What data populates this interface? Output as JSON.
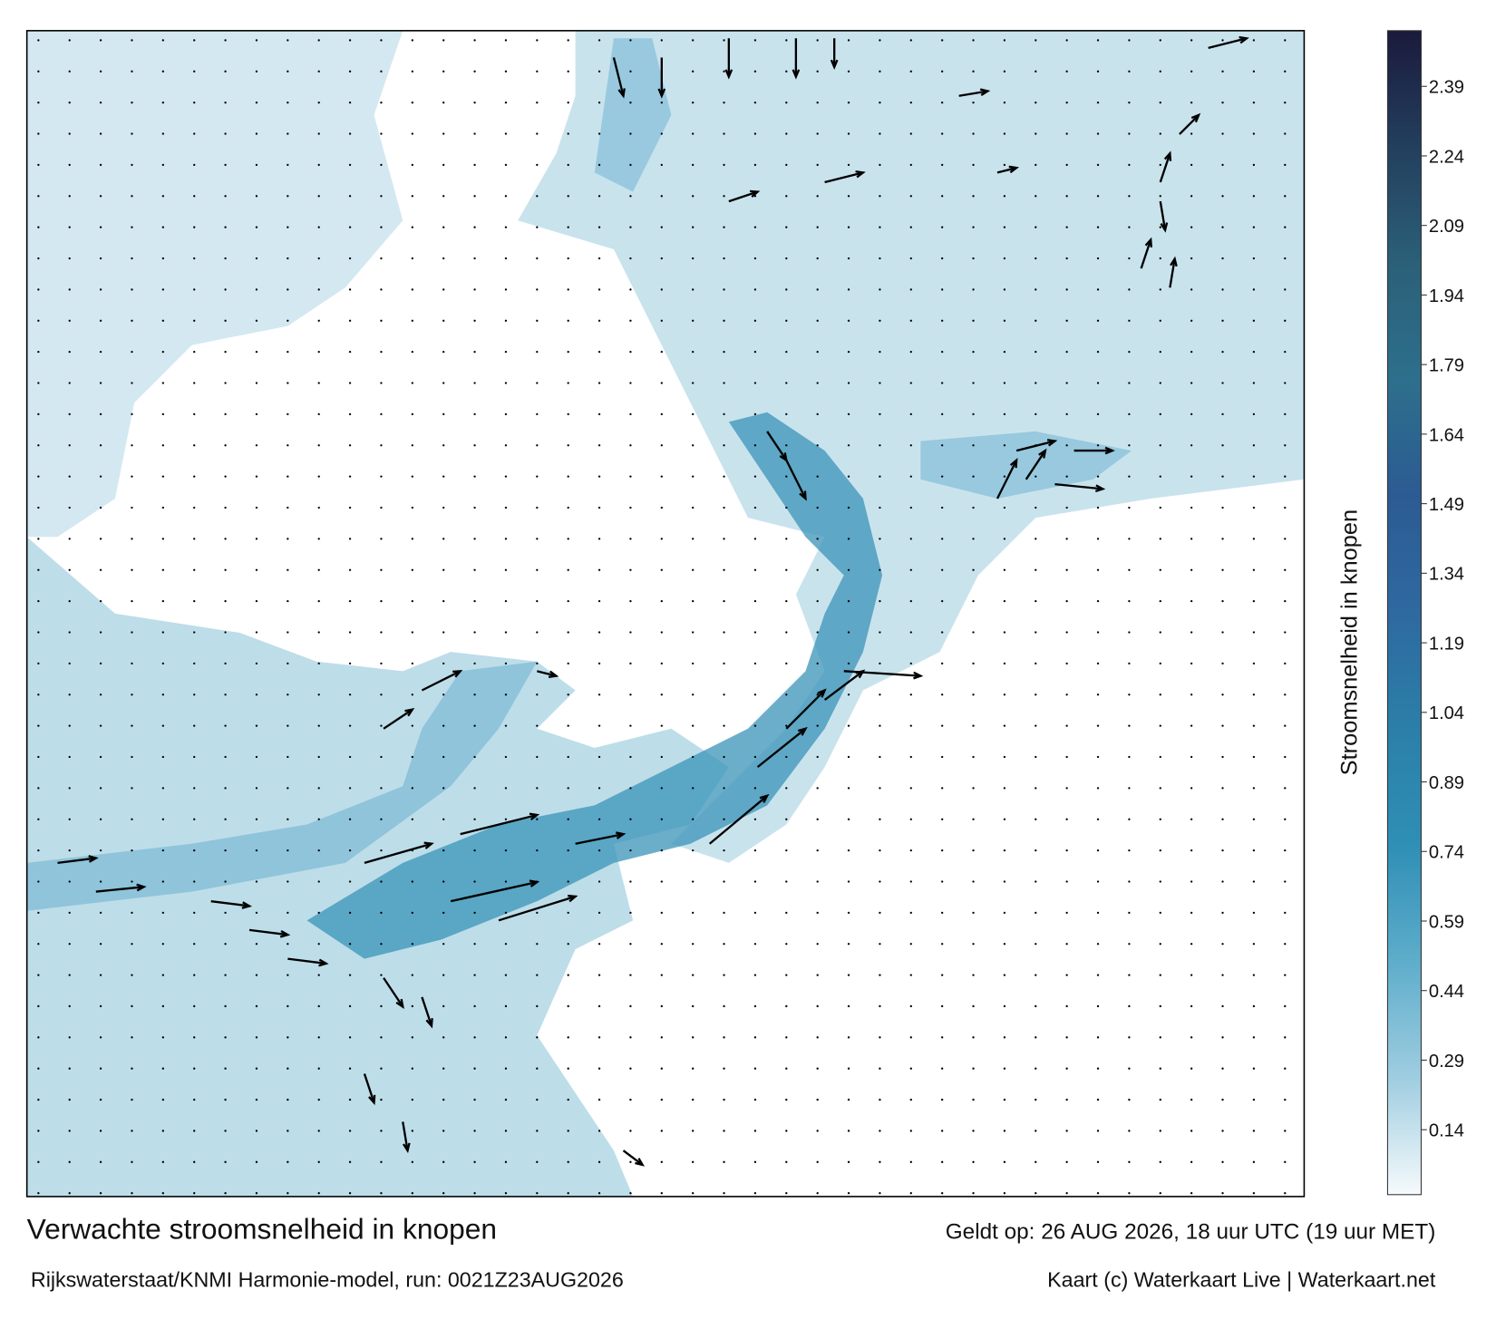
{
  "title": "Verwachte stroomsnelheid in knopen",
  "subtitle": "Rijkswaterstaat/KNMI Harmonie-model, run: 0021Z23AUG2026",
  "valid_time": "Geldt op: 26 AUG 2026, 18 uur UTC (19 uur MET)",
  "credit": "Kaart (c) Waterkaart Live | Waterkaart.net",
  "colorbar": {
    "label": "Stroomsnelheid in knopen",
    "lim": [
      0,
      2.51
    ],
    "ticks": [
      0.14,
      0.29,
      0.44,
      0.59,
      0.74,
      0.89,
      1.04,
      1.19,
      1.34,
      1.49,
      1.64,
      1.79,
      1.94,
      2.09,
      2.24,
      2.39
    ],
    "colors": [
      "#f6fafc",
      "#9fcde0",
      "#5eadcb",
      "#2f8fb5",
      "#2b7fa8",
      "#2e69a0",
      "#2c5b93",
      "#2d6f8c",
      "#2b6078",
      "#233f5e",
      "#1b1a3c"
    ]
  }
}
